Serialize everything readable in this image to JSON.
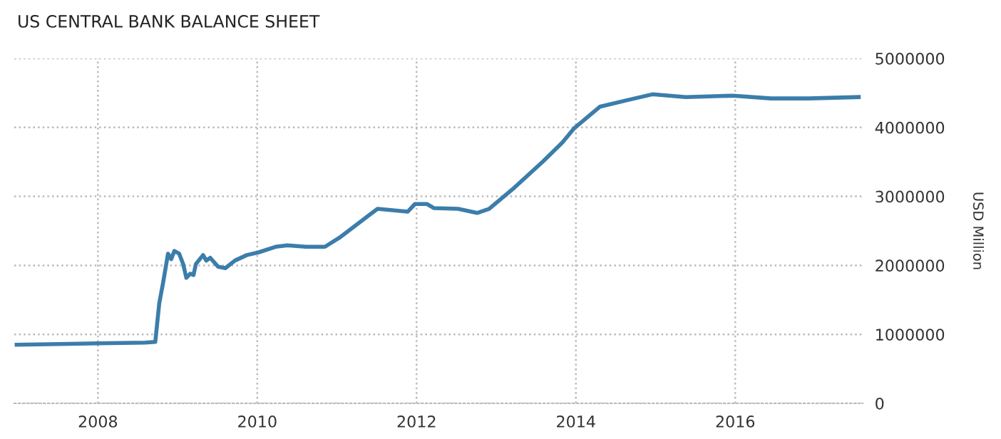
{
  "chart_data": {
    "type": "line",
    "title": "US CENTRAL BANK BALANCE SHEET",
    "ylabel": "USD Million",
    "series": [
      {
        "color": "#3b7dab",
        "x": [
          2006.98,
          2007.52,
          2008.0,
          2008.59,
          2008.72,
          2008.77,
          2008.82,
          2008.88,
          2008.92,
          2008.96,
          2009.02,
          2009.07,
          2009.11,
          2009.16,
          2009.2,
          2009.23,
          2009.32,
          2009.36,
          2009.41,
          2009.51,
          2009.6,
          2009.72,
          2009.87,
          2010.02,
          2010.23,
          2010.38,
          2010.61,
          2010.85,
          2011.03,
          2011.51,
          2011.89,
          2011.98,
          2012.13,
          2012.22,
          2012.52,
          2012.76,
          2012.91,
          2013.23,
          2013.59,
          2013.83,
          2013.98,
          2014.3,
          2014.66,
          2014.96,
          2015.38,
          2015.97,
          2016.45,
          2016.92,
          2017.55
        ],
        "values": [
          850000,
          860000,
          870000,
          880000,
          890000,
          1450000,
          1760000,
          2170000,
          2090000,
          2210000,
          2170000,
          2020000,
          1820000,
          1880000,
          1860000,
          2020000,
          2150000,
          2070000,
          2110000,
          1980000,
          1960000,
          2070000,
          2150000,
          2190000,
          2270000,
          2290000,
          2270000,
          2270000,
          2400000,
          2820000,
          2780000,
          2890000,
          2890000,
          2830000,
          2820000,
          2760000,
          2820000,
          3130000,
          3510000,
          3780000,
          3990000,
          4300000,
          4400000,
          4480000,
          4440000,
          4460000,
          4420000,
          4420000,
          4440000
        ]
      }
    ],
    "xlim": [
      2006.95,
      2017.6
    ],
    "xticks": [
      2008,
      2010,
      2012,
      2014,
      2016
    ],
    "ylim": [
      0,
      5000000
    ],
    "yticks": [
      0,
      1000000,
      2000000,
      3000000,
      4000000,
      5000000
    ],
    "grid": true,
    "legend": false,
    "marker": "none",
    "line_style": "solid"
  }
}
